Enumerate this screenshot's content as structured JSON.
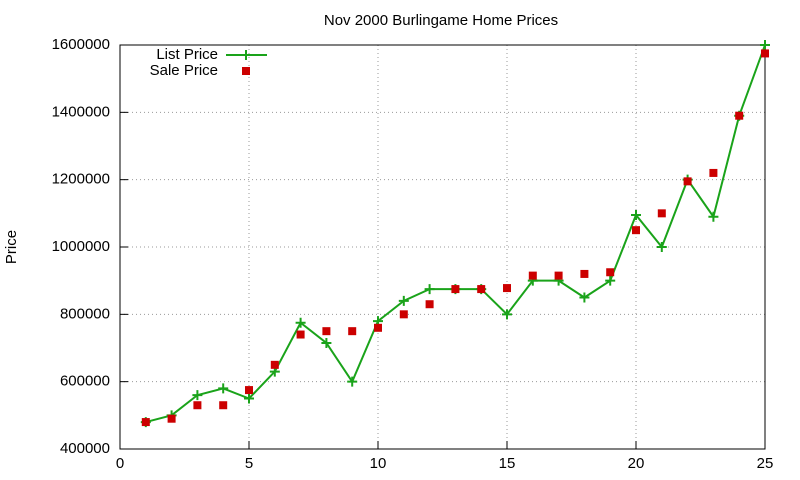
{
  "chart_data": {
    "type": "line",
    "title": "Nov 2000 Burlingame Home Prices",
    "y_label": "Price",
    "x": [
      1,
      2,
      3,
      4,
      5,
      6,
      7,
      8,
      9,
      10,
      11,
      12,
      13,
      14,
      15,
      16,
      17,
      18,
      19,
      20,
      21,
      22,
      23,
      24,
      25
    ],
    "series": [
      {
        "name": "List Price",
        "color": "#1aa31a",
        "style": "linespoints",
        "values": [
          480000,
          500000,
          560000,
          580000,
          550000,
          630000,
          775000,
          715000,
          600000,
          780000,
          840000,
          875000,
          875000,
          875000,
          800000,
          900000,
          900000,
          850000,
          900000,
          1095000,
          1000000,
          1200000,
          1090000,
          1390000,
          1600000
        ]
      },
      {
        "name": "Sale Price",
        "color": "#cc0000",
        "style": "points",
        "values": [
          480000,
          490000,
          530000,
          530000,
          575000,
          650000,
          740000,
          750000,
          750000,
          760000,
          800000,
          830000,
          875000,
          875000,
          878000,
          915000,
          915000,
          920000,
          925000,
          1050000,
          1100000,
          1195000,
          1220000,
          1390000,
          1575000
        ]
      }
    ],
    "xlim": [
      0,
      25
    ],
    "xticks": [
      0,
      5,
      10,
      15,
      20,
      25
    ],
    "ylim": [
      400000,
      1600000
    ],
    "yticks": [
      400000,
      600000,
      800000,
      1000000,
      1200000,
      1400000,
      1600000
    ],
    "grid": true,
    "legend": "top-left"
  }
}
